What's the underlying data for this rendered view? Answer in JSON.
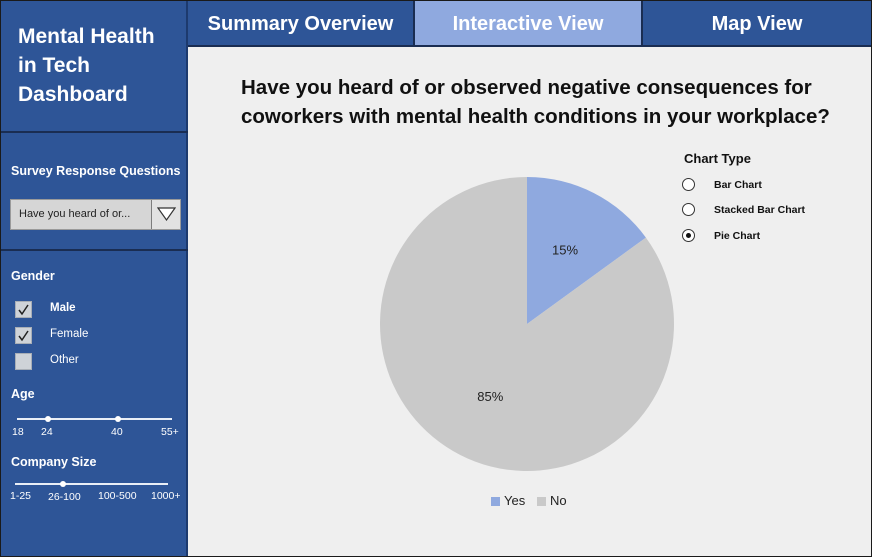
{
  "sidebar": {
    "app_title_lines": [
      "Mental Health",
      "in Tech",
      "Dashboard"
    ],
    "survey_label": "Survey Response Questions",
    "survey_dropdown_value": "Have you heard of or...",
    "gender_label": "Gender",
    "gender_options": [
      {
        "label": "Male",
        "checked": true
      },
      {
        "label": "Female",
        "checked": true
      },
      {
        "label": "Other",
        "checked": false
      }
    ],
    "age_label": "Age",
    "age_ticks": [
      "18",
      "24",
      "40",
      "55+"
    ],
    "age_selected": [
      "24",
      "40"
    ],
    "company_size_label": "Company Size",
    "company_size_ticks": [
      "1-25",
      "26-100",
      "100-500",
      "1000+"
    ],
    "company_size_selected": [
      "26-100"
    ]
  },
  "tabs": [
    {
      "label": "Summary Overview",
      "active": false
    },
    {
      "label": "Interactive View",
      "active": true
    },
    {
      "label": "Map View",
      "active": false
    }
  ],
  "main": {
    "question": "Have you heard of or observed negative consequences for coworkers with mental health conditions in your workplace?",
    "chart_type_label": "Chart Type",
    "chart_type_options": [
      {
        "label": "Bar Chart",
        "selected": false
      },
      {
        "label": "Stacked Bar Chart",
        "selected": false
      },
      {
        "label": "Pie Chart",
        "selected": true
      }
    ]
  },
  "colors": {
    "sidebar_bg": "#2e5597",
    "active_tab": "#8fa9df",
    "yes": "#8fa9df",
    "no": "#c9c9c9",
    "content_bg": "#efefef"
  },
  "chart_data": {
    "type": "pie",
    "categories": [
      "Yes",
      "No"
    ],
    "values": [
      15,
      85
    ],
    "data_labels": [
      "15%",
      "85%"
    ],
    "legend_position": "bottom"
  }
}
